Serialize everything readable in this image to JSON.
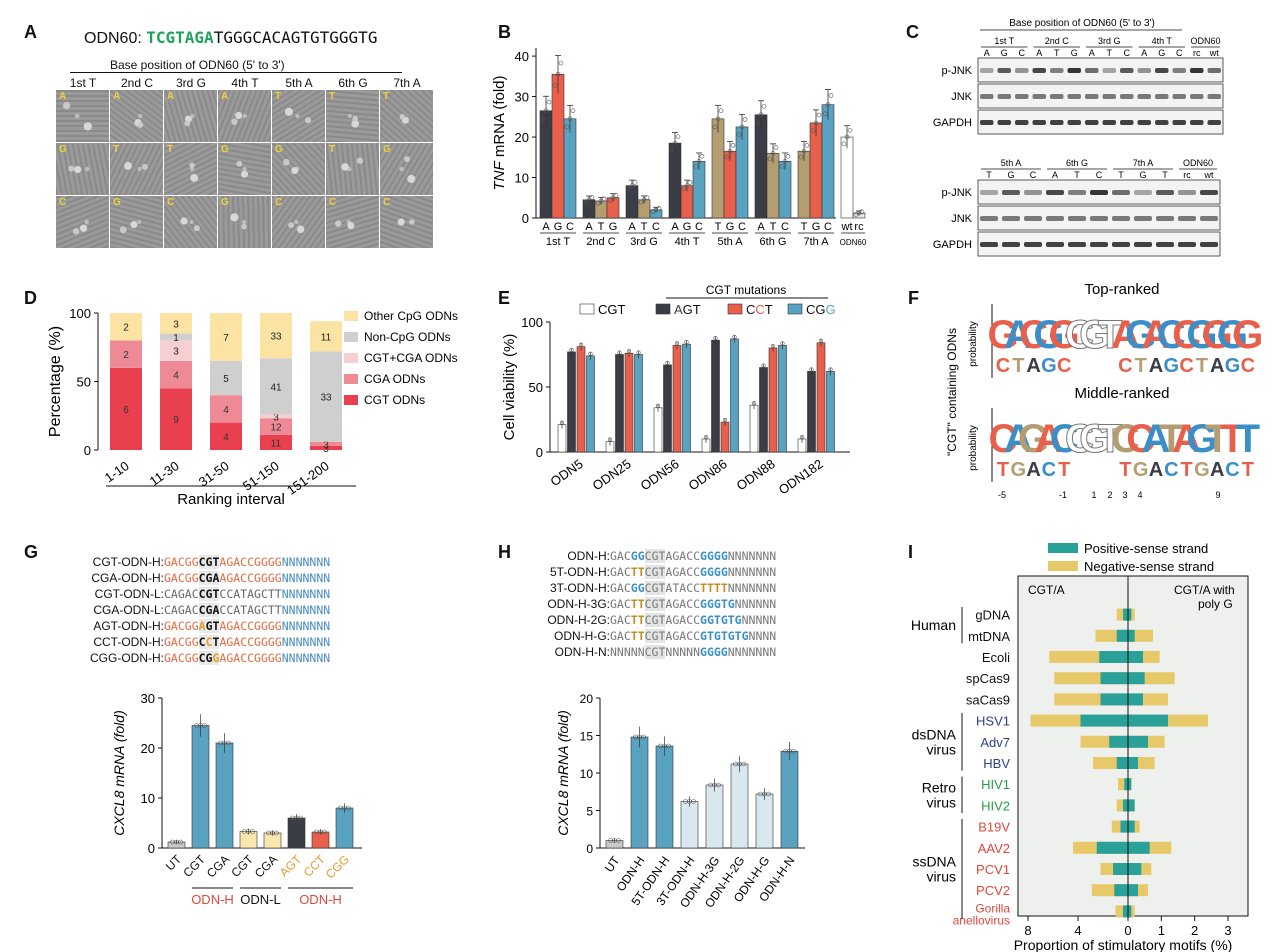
{
  "colors": {
    "A": "#3a3d45",
    "G": "#e8604c",
    "C": "#5aa3c0",
    "T": "#b59d72",
    "wt": "#ffffff",
    "rc": "#d0d0d0",
    "green_seq": "#1fa35a",
    "orange_seq": "#e5693f",
    "blue_seq": "#3a8fc8",
    "pos_strand": "#2aa198",
    "neg_strand": "#e8c96a",
    "cgt_only": "#e8404e",
    "cga": "#ee8a95",
    "cgt_cga": "#f7cfd3",
    "non_cpg": "#cfcfcf",
    "other_cpg": "#fbe3a4",
    "dsDNA": "#2f3d8f",
    "retro": "#2a9a4a",
    "ssDNA": "#e2473a",
    "ut": "#c9c9c9",
    "cgt_bar": "#5aa3c0",
    "low_bar": "#fae7ad",
    "light_bar": "#d9e7ee",
    "dark_bar": "#3a3d45",
    "red_bar": "#e8604c",
    "blue_bar": "#5aa3c0"
  },
  "panelA": {
    "label": "A",
    "seq_prefix": "ODN60:",
    "seq_green": "TCGTAGA",
    "seq_rest": "TGGGCACAGTGTGGGTG",
    "header": "Base position of ODN60 (5' to 3')",
    "columns": [
      "1st T",
      "2nd C",
      "3rd G",
      "4th T",
      "5th A",
      "6th G",
      "7th A"
    ],
    "tile_letters": [
      [
        "A",
        "A",
        "A",
        "A",
        "T",
        "T",
        "T"
      ],
      [
        "G",
        "T",
        "T",
        "G",
        "G",
        "T",
        "G"
      ],
      [
        "C",
        "G",
        "C",
        "G",
        "C",
        "C",
        "C"
      ]
    ]
  },
  "panelB": {
    "label": "B",
    "ylabel_italic": "TNF",
    "ylabel_rest": " mRNA (fold)",
    "yticks": [
      "0",
      "10",
      "20",
      "30",
      "40"
    ],
    "groups_subtick_labels": "base letters under each bar",
    "group_names": [
      "1st T",
      "2nd C",
      "3rd G",
      "4th T",
      "5th A",
      "6th G",
      "7th A"
    ],
    "last_group": "ODN60",
    "last_group_labels": [
      "wt",
      "rc"
    ]
  },
  "chart_data": [
    {
      "type": "bar",
      "panel": "B",
      "ylabel": "TNF mRNA (fold)",
      "ylim": [
        0,
        42
      ],
      "groups": [
        {
          "name": "1st T",
          "bars": [
            {
              "base": "A",
              "value": 26.5
            },
            {
              "base": "G",
              "value": 35.5
            },
            {
              "base": "C",
              "value": 24.5
            }
          ]
        },
        {
          "name": "2nd C",
          "bars": [
            {
              "base": "A",
              "value": 4.5
            },
            {
              "base": "T",
              "value": 4.2
            },
            {
              "base": "G",
              "value": 5.0
            }
          ]
        },
        {
          "name": "3rd G",
          "bars": [
            {
              "base": "A",
              "value": 8.0
            },
            {
              "base": "T",
              "value": 4.5
            },
            {
              "base": "C",
              "value": 2.0
            }
          ]
        },
        {
          "name": "4th T",
          "bars": [
            {
              "base": "A",
              "value": 18.5
            },
            {
              "base": "G",
              "value": 8.0
            },
            {
              "base": "C",
              "value": 14.0
            }
          ]
        },
        {
          "name": "5th A",
          "bars": [
            {
              "base": "T",
              "value": 24.5
            },
            {
              "base": "G",
              "value": 16.5
            },
            {
              "base": "C",
              "value": 22.5
            }
          ]
        },
        {
          "name": "6th G",
          "bars": [
            {
              "base": "A",
              "value": 25.5
            },
            {
              "base": "T",
              "value": 16.0
            },
            {
              "base": "C",
              "value": 14.0
            }
          ]
        },
        {
          "name": "7th A",
          "bars": [
            {
              "base": "T",
              "value": 16.5
            },
            {
              "base": "G",
              "value": 23.5
            },
            {
              "base": "C",
              "value": 28.0
            }
          ]
        },
        {
          "name": "ODN60",
          "bars": [
            {
              "base": "wt",
              "value": 20.0
            },
            {
              "base": "rc",
              "value": 1.2
            }
          ]
        }
      ]
    },
    {
      "type": "bar",
      "panel": "D",
      "ylabel": "Percentage (%)",
      "xlabel": "Ranking interval",
      "ylim": [
        0,
        100
      ],
      "categories": [
        "1-10",
        "11-30",
        "31-50",
        "51-150",
        "151-200"
      ],
      "series": [
        {
          "name": "CGT ODNs",
          "values": [
            60,
            45,
            20,
            11,
            3
          ],
          "labels": [
            "6",
            "9",
            "4",
            "11",
            "3"
          ]
        },
        {
          "name": "CGA ODNs",
          "values": [
            20,
            20,
            20,
            12,
            3
          ],
          "labels": [
            "2",
            "4",
            "4",
            "12",
            "3"
          ]
        },
        {
          "name": "CGT+CGA ODNs",
          "values": [
            0,
            15,
            0,
            3,
            0
          ],
          "labels": [
            "",
            "3",
            "",
            "3",
            ""
          ]
        },
        {
          "name": "Non-CpG ODNs",
          "values": [
            0,
            5,
            25,
            41,
            66
          ],
          "labels": [
            "",
            "1",
            "5",
            "41",
            "33"
          ]
        },
        {
          "name": "Other CpG ODNs",
          "values": [
            20,
            15,
            35,
            33,
            22
          ],
          "labels": [
            "2",
            "3",
            "7",
            "33",
            "11"
          ]
        }
      ]
    },
    {
      "type": "bar",
      "panel": "E",
      "ylabel": "Cell viability (%)",
      "ylim": [
        0,
        100
      ],
      "legend_title": "CGT mutations",
      "categories": [
        "ODN5",
        "ODN25",
        "ODN56",
        "ODN86",
        "ODN88",
        "ODN182"
      ],
      "series": [
        {
          "name": "CGT",
          "values": [
            21,
            8,
            34,
            10,
            36,
            10
          ]
        },
        {
          "name": "AGT",
          "values": [
            77,
            75,
            67,
            86,
            65,
            62
          ]
        },
        {
          "name": "CCT",
          "values": [
            81,
            76,
            82,
            23,
            80,
            84
          ]
        },
        {
          "name": "CGG",
          "values": [
            74,
            75,
            83,
            87,
            82,
            62
          ]
        }
      ]
    },
    {
      "type": "bar",
      "panel": "G",
      "ylabel": "CXCL8 mRNA (fold)",
      "ylim": [
        0,
        30
      ],
      "categories": [
        "UT",
        "CGT",
        "CGA",
        "CGT",
        "CGA",
        "AGT",
        "CCT",
        "CGG"
      ],
      "values": [
        1.2,
        24.5,
        21.0,
        3.3,
        3.0,
        6.0,
        3.2,
        8.0
      ],
      "group_labels": [
        "ODN-H",
        "ODN-L",
        "ODN-H"
      ]
    },
    {
      "type": "bar",
      "panel": "H",
      "ylabel": "CXCL8 mRNA (fold)",
      "ylim": [
        0,
        20
      ],
      "categories": [
        "UT",
        "ODN-H",
        "5T-ODN-H",
        "3T-ODN-H",
        "ODN-H-3G",
        "ODN-H-2G",
        "ODN-H-G",
        "ODN-H-N"
      ],
      "values": [
        1.0,
        14.8,
        13.6,
        6.2,
        8.4,
        11.2,
        7.2,
        12.9
      ]
    },
    {
      "type": "bar",
      "panel": "I",
      "xlabel": "Proportion of stimulatory motifs (%)",
      "left_title": "CGT/A",
      "right_title": "CGT/A with poly G",
      "legend": [
        "Positive-sense strand",
        "Negative-sense strand"
      ],
      "xticks": [
        "8",
        "4",
        "0",
        "1",
        "2",
        "3"
      ],
      "categories": [
        "gDNA",
        "mtDNA",
        "Ecoli",
        "spCas9",
        "saCas9",
        "HSV1",
        "Adv7",
        "HBV",
        "HIV1",
        "HIV2",
        "B19V",
        "AAV2",
        "PCV1",
        "PCV2",
        "Gorilla anellovirus"
      ],
      "left_pos": [
        0.4,
        0.9,
        2.3,
        2.2,
        2.2,
        3.8,
        1.5,
        0.9,
        0.3,
        0.4,
        0.6,
        2.5,
        1.2,
        1.1,
        0.4
      ],
      "left_neg": [
        0.9,
        2.6,
        6.3,
        5.9,
        5.9,
        7.8,
        3.8,
        2.8,
        0.8,
        0.9,
        1.3,
        4.4,
        2.2,
        2.9,
        1.0
      ],
      "right_pos": [
        0.1,
        0.2,
        0.45,
        0.5,
        0.45,
        1.2,
        0.6,
        0.3,
        0.1,
        0.2,
        0.2,
        0.65,
        0.4,
        0.3,
        0.1
      ],
      "right_neg": [
        0.2,
        0.75,
        0.95,
        1.4,
        1.2,
        2.4,
        1.1,
        0.8,
        0.1,
        0.2,
        0.35,
        1.3,
        0.7,
        0.6,
        0.2
      ]
    }
  ],
  "panelC": {
    "label": "C",
    "header": "Base position of ODN60 (5' to 3')",
    "top_groups": [
      "1st T",
      "2nd C",
      "3rd G",
      "4th T"
    ],
    "top_letters": [
      "A",
      "G",
      "C",
      "A",
      "T",
      "G",
      "A",
      "T",
      "C",
      "A",
      "G",
      "C"
    ],
    "top_extra_group": "ODN60",
    "top_extra_letters": [
      "rc",
      "wt"
    ],
    "bottom_groups": [
      "5th A",
      "6th G",
      "7th A"
    ],
    "bottom_letters": [
      "T",
      "G",
      "C",
      "A",
      "T",
      "C",
      "T",
      "G",
      "T"
    ],
    "bottom_extra_group": "ODN60",
    "bottom_extra_letters": [
      "rc",
      "wt"
    ],
    "rows": [
      "p-JNK",
      "JNK",
      "GAPDH"
    ]
  },
  "panelD": {
    "label": "D",
    "yticks": [
      "0",
      "50",
      "100"
    ]
  },
  "panelE": {
    "label": "E",
    "yticks": [
      "0",
      "50",
      "100"
    ],
    "legend": [
      {
        "key": "CGT",
        "plain": [
          "CGT"
        ]
      },
      {
        "key": "AGT",
        "parts": [
          [
            "A",
            "#3a3d45"
          ],
          [
            "GT",
            "#111"
          ]
        ]
      },
      {
        "key": "CCT",
        "parts": [
          [
            "C",
            "#111"
          ],
          [
            "C",
            "#e8604c"
          ],
          [
            "T",
            "#111"
          ]
        ]
      },
      {
        "key": "CGG",
        "parts": [
          [
            "CG",
            "#111"
          ],
          [
            "G",
            "#5aa3c0"
          ]
        ]
      }
    ]
  },
  "panelF": {
    "label": "F",
    "title_top": "Top-ranked",
    "title_mid": "Middle-ranked",
    "ylabel_outer": "\"CGT\" containing ODNs",
    "ylabel_inner": "probability",
    "top_logo": [
      "G",
      "A",
      "C",
      "G",
      "G",
      "C",
      "G",
      "T",
      "A",
      "G",
      "A",
      "C",
      "C",
      "G",
      "G",
      "G",
      "G"
    ],
    "mid_logo": [
      "C",
      "A",
      "G",
      "A",
      "C",
      "C",
      "G",
      "T",
      "C",
      "C",
      "A",
      "T",
      "A",
      "G",
      "T",
      "T",
      "T"
    ],
    "xticks": [
      "-5",
      "-1",
      "1",
      "2",
      "3",
      "4",
      "9"
    ]
  },
  "panelG": {
    "label": "G",
    "seqs": [
      {
        "name": "CGT-ODN-H:",
        "parts": [
          [
            "GACGG",
            "o"
          ],
          [
            "CGT",
            "bold"
          ],
          [
            "AGACCGGGG",
            "o"
          ],
          [
            "NNNNNNN",
            "b"
          ]
        ]
      },
      {
        "name": "CGA-ODN-H:",
        "parts": [
          [
            "GACGG",
            "o"
          ],
          [
            "CGA",
            "bold"
          ],
          [
            "AGACCGGGG",
            "o"
          ],
          [
            "NNNNNNN",
            "b"
          ]
        ]
      },
      {
        "name": "CGT-ODN-L:",
        "parts": [
          [
            "CAGAC",
            "g"
          ],
          [
            "CGT",
            "bold"
          ],
          [
            "CCATAGCTT",
            "g"
          ],
          [
            "NNNNNNN",
            "b"
          ]
        ]
      },
      {
        "name": "CGA-ODN-L:",
        "parts": [
          [
            "CAGAC",
            "g"
          ],
          [
            "CGA",
            "bold"
          ],
          [
            "CCATAGCTT",
            "g"
          ],
          [
            "NNNNNNN",
            "b"
          ]
        ]
      },
      {
        "name": "AGT-ODN-H:",
        "parts": [
          [
            "GACGG",
            "o"
          ],
          [
            "A",
            "y"
          ],
          [
            "GT",
            "bold"
          ],
          [
            "AGACCGGGG",
            "o"
          ],
          [
            "NNNNNNN",
            "b"
          ]
        ]
      },
      {
        "name": "CCT-ODN-H:",
        "parts": [
          [
            "GACGG",
            "o"
          ],
          [
            "C",
            "bold"
          ],
          [
            "C",
            "y"
          ],
          [
            "T",
            "bold"
          ],
          [
            "AGACCGGGG",
            "o"
          ],
          [
            "NNNNNNN",
            "b"
          ]
        ]
      },
      {
        "name": "CGG-ODN-H:",
        "parts": [
          [
            "GACGG",
            "o"
          ],
          [
            "CG",
            "bold"
          ],
          [
            "G",
            "y"
          ],
          [
            "AGACCGGGG",
            "o"
          ],
          [
            "NNNNNNN",
            "b"
          ]
        ]
      }
    ],
    "yticks": [
      "0",
      "10",
      "20",
      "30"
    ],
    "group_labels": [
      "ODN-H",
      "ODN-L",
      "ODN-H"
    ]
  },
  "panelH": {
    "label": "H",
    "seqs": [
      {
        "name": "ODN-H:",
        "parts": [
          [
            "GAC",
            "g"
          ],
          [
            "GG",
            "b"
          ],
          [
            "CGT",
            "hl"
          ],
          [
            "AGACC",
            "g"
          ],
          [
            "GGGG",
            "b"
          ],
          [
            "NNNNNNN",
            "g"
          ]
        ]
      },
      {
        "name": "5T-ODN-H:",
        "parts": [
          [
            "GAC",
            "g"
          ],
          [
            "TT",
            "y"
          ],
          [
            "CGT",
            "hl"
          ],
          [
            "AGACC",
            "g"
          ],
          [
            "GGGG",
            "b"
          ],
          [
            "NNNNNNN",
            "g"
          ]
        ]
      },
      {
        "name": "3T-ODN-H:",
        "parts": [
          [
            "GAC",
            "g"
          ],
          [
            "GG",
            "b"
          ],
          [
            "CGT",
            "hl"
          ],
          [
            "ATACC",
            "g"
          ],
          [
            "TTTT",
            "y"
          ],
          [
            "NNNNNNN",
            "g"
          ]
        ]
      },
      {
        "name": "ODN-H-3G:",
        "parts": [
          [
            "GAC",
            "g"
          ],
          [
            "TT",
            "y"
          ],
          [
            "CGT",
            "hl"
          ],
          [
            "AGACC",
            "g"
          ],
          [
            "GGGTG",
            "b"
          ],
          [
            "NNNNNN",
            "g"
          ]
        ]
      },
      {
        "name": "ODN-H-2G:",
        "parts": [
          [
            "GAC",
            "g"
          ],
          [
            "TT",
            "y"
          ],
          [
            "CGT",
            "hl"
          ],
          [
            "AGACC",
            "g"
          ],
          [
            "GGTGTG",
            "b"
          ],
          [
            "NNNNN",
            "g"
          ]
        ]
      },
      {
        "name": "ODN-H-G:",
        "parts": [
          [
            "GAC",
            "g"
          ],
          [
            "TT",
            "y"
          ],
          [
            "CGT",
            "hl"
          ],
          [
            "AGACC",
            "g"
          ],
          [
            "GTGTGTG",
            "b"
          ],
          [
            "NNNN",
            "g"
          ]
        ]
      },
      {
        "name": "ODN-H-N:",
        "parts": [
          [
            "NNNNN",
            "g"
          ],
          [
            "CGT",
            "hl"
          ],
          [
            "NNNNN",
            "g"
          ],
          [
            "GGGG",
            "b"
          ],
          [
            "NNNNNNN",
            "g"
          ]
        ]
      }
    ],
    "yticks": [
      "0",
      "5",
      "10",
      "15",
      "20"
    ]
  },
  "panelI": {
    "label": "I",
    "groups": [
      {
        "name": "Human",
        "rows": [
          0,
          1
        ]
      },
      {
        "name": "dsDNA virus",
        "rows": [
          5,
          7
        ]
      },
      {
        "name": "Retro virus",
        "rows": [
          8,
          9
        ]
      },
      {
        "name": "ssDNA virus",
        "rows": [
          10,
          14
        ]
      }
    ],
    "row_colors": [
      "#111",
      "#111",
      "#111",
      "#111",
      "#111",
      "#2f3d8f",
      "#2f3d8f",
      "#2f3d8f",
      "#2a9a4a",
      "#2a9a4a",
      "#e2473a",
      "#e2473a",
      "#e2473a",
      "#e2473a",
      "#e2473a"
    ]
  }
}
